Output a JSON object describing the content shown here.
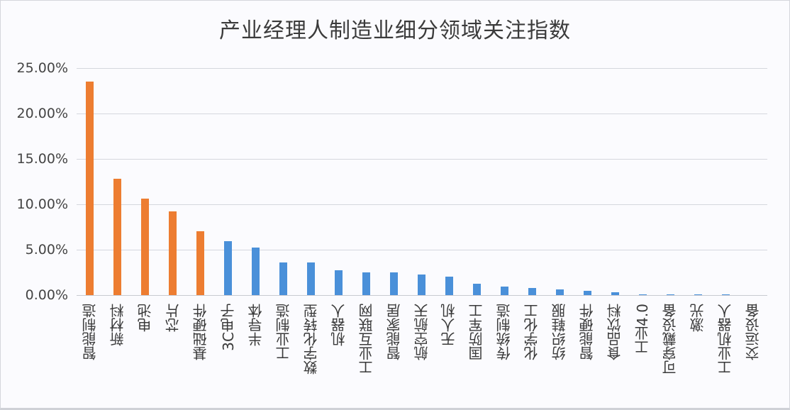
{
  "chart_data": {
    "type": "bar",
    "title": "产业经理人制造业细分领域关注指数",
    "xlabel": "",
    "ylabel": "",
    "ylim": [
      0,
      0.25
    ],
    "yticks": [
      "0.00%",
      "5.00%",
      "10.00%",
      "15.00%",
      "20.00%",
      "25.00%"
    ],
    "grid": true,
    "legend": null,
    "categories": [
      "智能制造",
      "新材料",
      "电池",
      "芯片",
      "基础硬件",
      "3C电子",
      "半导体",
      "工业制造",
      "数字化转型",
      "机器人",
      "工业互联网",
      "智能家居",
      "航空航天",
      "无人机",
      "国防军工",
      "传统制造",
      "化学化工",
      "纺织鞋服",
      "智能硬件",
      "食品饮料",
      "工业4.0",
      "可穿戴设备",
      "激光",
      "工业机器人",
      "交运设备"
    ],
    "values": [
      23.5,
      12.8,
      10.6,
      9.2,
      7.0,
      5.9,
      5.2,
      3.6,
      3.6,
      2.7,
      2.5,
      2.5,
      2.3,
      2.0,
      1.25,
      0.95,
      0.8,
      0.6,
      0.45,
      0.3,
      0.1,
      0.1,
      0.1,
      0.1,
      0.0
    ],
    "value_unit": "%",
    "highlight_count": 5,
    "colors": {
      "highlight": "#ED7D31",
      "normal": "#4A90D9"
    }
  }
}
